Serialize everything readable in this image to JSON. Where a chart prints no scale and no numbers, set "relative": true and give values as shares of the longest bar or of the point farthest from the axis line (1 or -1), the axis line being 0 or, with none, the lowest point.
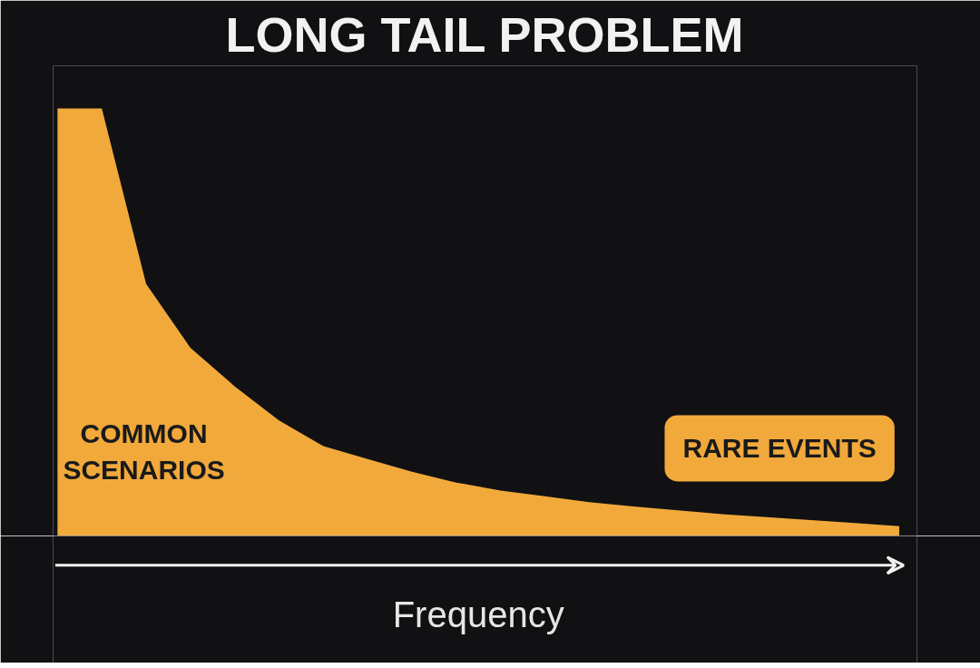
{
  "chart_data": {
    "type": "area",
    "title": "LONG TAIL PROBLEM",
    "xlabel": "Frequency",
    "relative": true,
    "grid": false,
    "color": "#f2a93b",
    "categories": [
      null,
      null,
      null,
      null,
      null,
      null,
      null,
      null,
      null,
      null,
      null,
      null,
      null,
      null,
      null,
      null,
      null,
      null,
      null,
      null
    ],
    "values": [
      1.0,
      1.0,
      0.59,
      0.44,
      0.35,
      0.27,
      0.21,
      0.18,
      0.15,
      0.125,
      0.106,
      0.093,
      0.079,
      0.069,
      0.06,
      0.051,
      0.044,
      0.037,
      0.03,
      0.023
    ],
    "annotations": [
      "COMMON\nSCENARIOS",
      "RARE EVENTS"
    ]
  }
}
